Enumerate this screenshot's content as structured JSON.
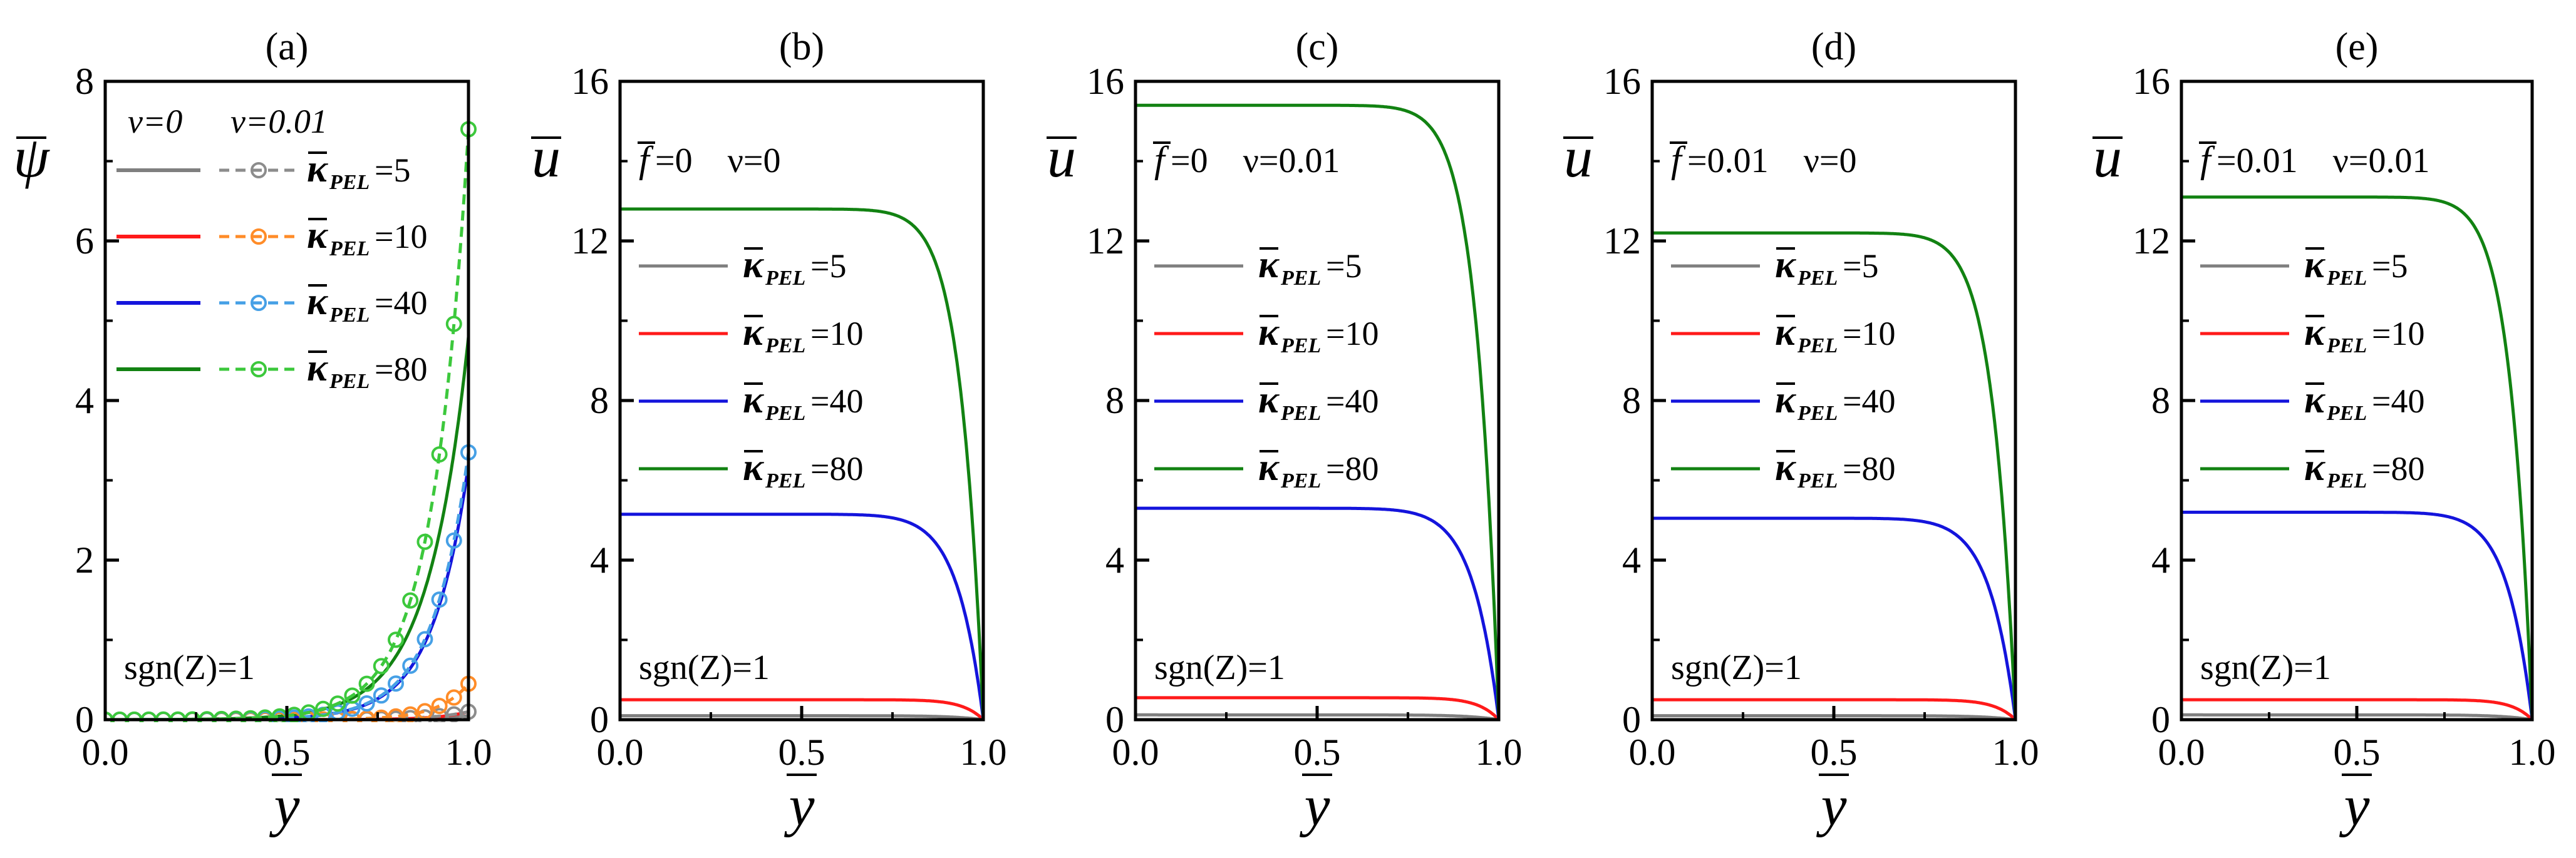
{
  "figure": {
    "xlabel": "y",
    "colors": {
      "k5": "#7f7f7f",
      "k10": "#ff1a1a",
      "k40": "#1414dc",
      "k80": "#128212",
      "k5_dash": "#8c8c8c",
      "k10_dash": "#ff8c28",
      "k40_dash": "#46a0e6",
      "k80_dash": "#3cc83c"
    }
  },
  "chart_data": [
    {
      "type": "line",
      "panel": "(a)",
      "ylabel": "ψ",
      "xlabel": "y",
      "xlim": [
        0,
        1
      ],
      "ylim": [
        0,
        8
      ],
      "xticks": [
        "0.0",
        "0.5",
        "1.0"
      ],
      "yticks": [
        "0",
        "2",
        "4",
        "6",
        "8"
      ],
      "legend_headers": [
        "ν=0",
        "ν=0.01"
      ],
      "condition_text": "",
      "annotation": "sgn(Z)=1",
      "series": [
        {
          "key": "k5",
          "label": "=5",
          "line": "solid",
          "nu": 0,
          "end_value": 0.05
        },
        {
          "key": "k10",
          "label": "=10",
          "line": "solid",
          "nu": 0,
          "end_value": 0.1
        },
        {
          "key": "k40",
          "label": "=40",
          "line": "solid",
          "nu": 0,
          "end_value": 3.2
        },
        {
          "key": "k80",
          "label": "=80",
          "line": "solid",
          "nu": 0,
          "end_value": 4.8
        },
        {
          "key": "k5_dash",
          "label": "=5",
          "line": "dashed",
          "nu": 0.01,
          "end_value": 0.1
        },
        {
          "key": "k10_dash",
          "label": "=10",
          "line": "dashed",
          "nu": 0.01,
          "end_value": 0.45
        },
        {
          "key": "k40_dash",
          "label": "=40",
          "line": "dashed",
          "nu": 0.01,
          "end_value": 3.35
        },
        {
          "key": "k80_dash",
          "label": "=80",
          "line": "dashed",
          "nu": 0.01,
          "end_value": 7.4
        }
      ]
    },
    {
      "type": "line",
      "panel": "(b)",
      "ylabel": "u",
      "xlabel": "y",
      "xlim": [
        0,
        1
      ],
      "ylim": [
        0,
        16
      ],
      "xticks": [
        "0.0",
        "0.5",
        "1.0"
      ],
      "yticks": [
        "0",
        "4",
        "8",
        "12",
        "16"
      ],
      "condition_text": "=0    ν=0",
      "annotation": "sgn(Z)=1",
      "series": [
        {
          "key": "k5",
          "label": "=5",
          "plateau": 0.1
        },
        {
          "key": "k10",
          "label": "=10",
          "plateau": 0.5
        },
        {
          "key": "k40",
          "label": "=40",
          "plateau": 5.15
        },
        {
          "key": "k80",
          "label": "=80",
          "plateau": 12.8
        }
      ]
    },
    {
      "type": "line",
      "panel": "(c)",
      "ylabel": "u",
      "xlabel": "y",
      "xlim": [
        0,
        1
      ],
      "ylim": [
        0,
        16
      ],
      "xticks": [
        "0.0",
        "0.5",
        "1.0"
      ],
      "yticks": [
        "0",
        "4",
        "8",
        "12",
        "16"
      ],
      "condition_text": "=0    ν=0.01",
      "annotation": "sgn(Z)=1",
      "series": [
        {
          "key": "k5",
          "label": "=5",
          "plateau": 0.12
        },
        {
          "key": "k10",
          "label": "=10",
          "plateau": 0.55
        },
        {
          "key": "k40",
          "label": "=40",
          "plateau": 5.3
        },
        {
          "key": "k80",
          "label": "=80",
          "plateau": 15.4
        }
      ]
    },
    {
      "type": "line",
      "panel": "(d)",
      "ylabel": "u",
      "xlabel": "y",
      "xlim": [
        0,
        1
      ],
      "ylim": [
        0,
        16
      ],
      "xticks": [
        "0.0",
        "0.5",
        "1.0"
      ],
      "yticks": [
        "0",
        "4",
        "8",
        "12",
        "16"
      ],
      "condition_text": "=0.01    ν=0",
      "annotation": "sgn(Z)=1",
      "series": [
        {
          "key": "k5",
          "label": "=5",
          "plateau": 0.1
        },
        {
          "key": "k10",
          "label": "=10",
          "plateau": 0.5
        },
        {
          "key": "k40",
          "label": "=40",
          "plateau": 5.05
        },
        {
          "key": "k80",
          "label": "=80",
          "plateau": 12.2
        }
      ]
    },
    {
      "type": "line",
      "panel": "(e)",
      "ylabel": "u",
      "xlabel": "y",
      "xlim": [
        0,
        1
      ],
      "ylim": [
        0,
        16
      ],
      "xticks": [
        "0.0",
        "0.5",
        "1.0"
      ],
      "yticks": [
        "0",
        "4",
        "8",
        "12",
        "16"
      ],
      "condition_text": "=0.01    ν=0.01",
      "annotation": "sgn(Z)=1",
      "series": [
        {
          "key": "k5",
          "label": "=5",
          "plateau": 0.12
        },
        {
          "key": "k10",
          "label": "=10",
          "plateau": 0.5
        },
        {
          "key": "k40",
          "label": "=40",
          "plateau": 5.2
        },
        {
          "key": "k80",
          "label": "=80",
          "plateau": 13.1
        }
      ]
    }
  ]
}
